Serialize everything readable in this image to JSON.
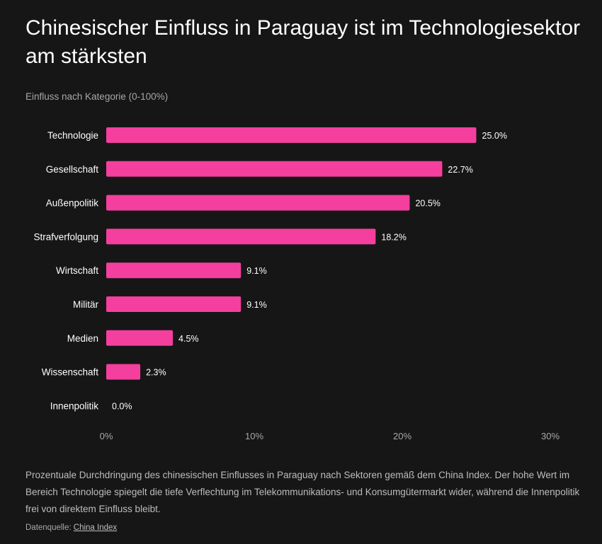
{
  "title": "Chinesischer Einfluss in Paraguay ist im Technologiesektor am stärksten",
  "subtitle": "Einfluss nach Kategorie (0-100%)",
  "description": "Prozentuale Durchdringung des chinesischen Einflusses in Paraguay nach Sektoren gemäß dem China Index. Der hohe Wert im Bereich Technologie spiegelt die tiefe Verflechtung im Telekommunikations- und Konsumgütermarkt wider, während die Innenpolitik frei von direktem Einfluss bleibt.",
  "source": {
    "label": "Datenquelle:",
    "link_text": "China Index"
  },
  "colors": {
    "bar": "#f43f9e",
    "background": "#161616"
  },
  "chart_data": {
    "type": "bar",
    "orientation": "horizontal",
    "categories": [
      "Technologie",
      "Gesellschaft",
      "Außenpolitik",
      "Strafverfolgung",
      "Wirtschaft",
      "Militär",
      "Medien",
      "Wissenschaft",
      "Innenpolitik"
    ],
    "values": [
      25.0,
      22.7,
      20.5,
      18.2,
      9.1,
      9.1,
      4.5,
      2.3,
      0.0
    ],
    "data_labels": [
      "25.0%",
      "22.7%",
      "20.5%",
      "18.2%",
      "9.1%",
      "9.1%",
      "4.5%",
      "2.3%",
      "0.0%"
    ],
    "xlim": [
      0,
      30
    ],
    "xticks": [
      0,
      10,
      20,
      30
    ],
    "xtick_labels": [
      "0%",
      "10%",
      "20%",
      "30%"
    ],
    "grid": false,
    "xlabel": "",
    "ylabel": ""
  }
}
